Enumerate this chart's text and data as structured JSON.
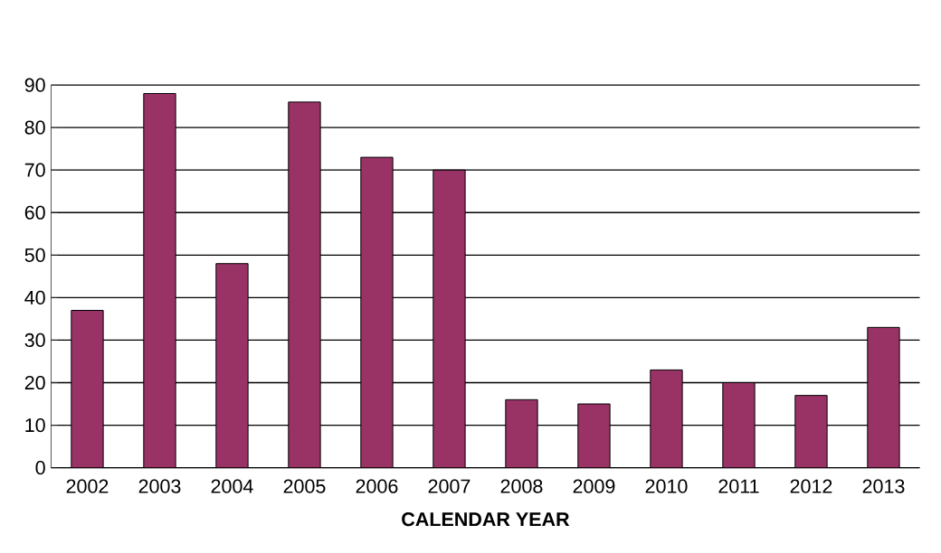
{
  "chart_data": {
    "type": "bar",
    "xlabel": "CALENDAR YEAR",
    "categories": [
      "2002",
      "2003",
      "2004",
      "2005",
      "2006",
      "2007",
      "2008",
      "2009",
      "2010",
      "2011",
      "2012",
      "2013"
    ],
    "values": [
      37,
      88,
      48,
      86,
      73,
      70,
      16,
      15,
      23,
      20,
      17,
      33
    ],
    "color": "#993366",
    "ylim": [
      0,
      90
    ],
    "yticks": [
      0,
      10,
      20,
      30,
      40,
      50,
      60,
      70,
      80,
      90
    ],
    "grid": "y"
  }
}
